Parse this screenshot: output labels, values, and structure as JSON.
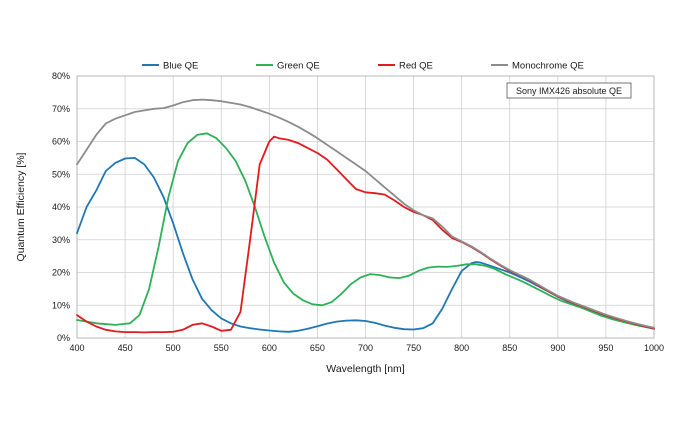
{
  "chart_data": {
    "type": "line",
    "title": "",
    "xlabel": "Wavelength [nm]",
    "ylabel": "Quantum Efficiency [%]",
    "xlim": [
      400,
      1000
    ],
    "ylim": [
      0,
      80
    ],
    "x_ticks": [
      400,
      450,
      500,
      550,
      600,
      650,
      700,
      750,
      800,
      850,
      900,
      950,
      1000
    ],
    "x_tick_labels": [
      "400",
      "450",
      "500",
      "550",
      "600",
      "650",
      "700",
      "750",
      "800",
      "850",
      "900",
      "950",
      "1000"
    ],
    "y_ticks": [
      0,
      10,
      20,
      30,
      40,
      50,
      60,
      70,
      80
    ],
    "y_tick_labels": [
      "0%",
      "10%",
      "20%",
      "30%",
      "40%",
      "50%",
      "60%",
      "70%",
      "80%"
    ],
    "grid": true,
    "legend_position": "top",
    "annotation": "Sony IMX426 absolute QE",
    "series": [
      {
        "name": "Blue QE",
        "color": "#1f77b4",
        "points": [
          [
            400,
            32
          ],
          [
            410,
            40
          ],
          [
            420,
            45
          ],
          [
            430,
            51
          ],
          [
            440,
            53.5
          ],
          [
            450,
            54.8
          ],
          [
            460,
            55
          ],
          [
            470,
            53
          ],
          [
            480,
            49
          ],
          [
            490,
            43
          ],
          [
            500,
            35
          ],
          [
            510,
            26
          ],
          [
            520,
            18
          ],
          [
            530,
            12
          ],
          [
            540,
            8.5
          ],
          [
            550,
            6
          ],
          [
            560,
            4.5
          ],
          [
            570,
            3.5
          ],
          [
            580,
            3
          ],
          [
            590,
            2.6
          ],
          [
            600,
            2.3
          ],
          [
            610,
            2
          ],
          [
            620,
            1.9
          ],
          [
            630,
            2.2
          ],
          [
            640,
            2.8
          ],
          [
            650,
            3.6
          ],
          [
            660,
            4.4
          ],
          [
            670,
            5
          ],
          [
            680,
            5.3
          ],
          [
            690,
            5.4
          ],
          [
            700,
            5.2
          ],
          [
            710,
            4.6
          ],
          [
            720,
            3.8
          ],
          [
            730,
            3.1
          ],
          [
            740,
            2.7
          ],
          [
            750,
            2.6
          ],
          [
            760,
            3
          ],
          [
            770,
            4.5
          ],
          [
            780,
            9
          ],
          [
            790,
            15
          ],
          [
            800,
            20.5
          ],
          [
            810,
            22.8
          ],
          [
            815,
            23.2
          ],
          [
            820,
            23
          ],
          [
            830,
            22
          ],
          [
            840,
            21
          ],
          [
            850,
            20
          ],
          [
            860,
            18.7
          ],
          [
            870,
            17.3
          ],
          [
            880,
            15.8
          ],
          [
            890,
            14.2
          ],
          [
            900,
            12.6
          ],
          [
            910,
            11.2
          ],
          [
            920,
            10
          ],
          [
            930,
            9
          ],
          [
            940,
            7.8
          ],
          [
            950,
            6.7
          ],
          [
            960,
            5.8
          ],
          [
            970,
            5
          ],
          [
            980,
            4.2
          ],
          [
            990,
            3.5
          ],
          [
            1000,
            2.8
          ]
        ]
      },
      {
        "name": "Green QE",
        "color": "#2db057",
        "points": [
          [
            400,
            5.5
          ],
          [
            420,
            4.5
          ],
          [
            440,
            4
          ],
          [
            455,
            4.5
          ],
          [
            465,
            7
          ],
          [
            475,
            15
          ],
          [
            485,
            28
          ],
          [
            495,
            43
          ],
          [
            505,
            54
          ],
          [
            515,
            59.5
          ],
          [
            525,
            62
          ],
          [
            535,
            62.5
          ],
          [
            545,
            61
          ],
          [
            555,
            58
          ],
          [
            565,
            54
          ],
          [
            575,
            48
          ],
          [
            585,
            40
          ],
          [
            595,
            31
          ],
          [
            605,
            23
          ],
          [
            615,
            17
          ],
          [
            625,
            13.5
          ],
          [
            635,
            11.5
          ],
          [
            645,
            10.3
          ],
          [
            655,
            10
          ],
          [
            665,
            11
          ],
          [
            675,
            13.5
          ],
          [
            685,
            16.5
          ],
          [
            695,
            18.5
          ],
          [
            705,
            19.5
          ],
          [
            715,
            19.2
          ],
          [
            725,
            18.5
          ],
          [
            735,
            18.3
          ],
          [
            745,
            19
          ],
          [
            755,
            20.5
          ],
          [
            765,
            21.5
          ],
          [
            775,
            21.8
          ],
          [
            785,
            21.7
          ],
          [
            795,
            22
          ],
          [
            805,
            22.5
          ],
          [
            815,
            22.5
          ],
          [
            825,
            22
          ],
          [
            835,
            21
          ],
          [
            845,
            19.5
          ],
          [
            855,
            18.3
          ],
          [
            865,
            17
          ],
          [
            875,
            15.5
          ],
          [
            885,
            14
          ],
          [
            895,
            12.5
          ],
          [
            905,
            11.2
          ],
          [
            915,
            10.2
          ],
          [
            925,
            9.2
          ],
          [
            935,
            8
          ],
          [
            945,
            6.8
          ],
          [
            955,
            5.9
          ],
          [
            965,
            5.1
          ],
          [
            975,
            4.4
          ],
          [
            985,
            3.7
          ],
          [
            1000,
            2.8
          ]
        ]
      },
      {
        "name": "Red QE",
        "color": "#e31a1c",
        "points": [
          [
            400,
            7
          ],
          [
            410,
            5
          ],
          [
            420,
            3.5
          ],
          [
            430,
            2.5
          ],
          [
            440,
            2
          ],
          [
            450,
            1.8
          ],
          [
            460,
            1.8
          ],
          [
            470,
            1.7
          ],
          [
            480,
            1.8
          ],
          [
            490,
            1.8
          ],
          [
            500,
            1.9
          ],
          [
            510,
            2.5
          ],
          [
            520,
            4
          ],
          [
            530,
            4.5
          ],
          [
            540,
            3.5
          ],
          [
            550,
            2.2
          ],
          [
            560,
            2.5
          ],
          [
            570,
            8
          ],
          [
            580,
            30
          ],
          [
            590,
            53
          ],
          [
            600,
            60
          ],
          [
            605,
            61.5
          ],
          [
            610,
            61
          ],
          [
            620,
            60.5
          ],
          [
            630,
            59.5
          ],
          [
            640,
            58
          ],
          [
            650,
            56.5
          ],
          [
            660,
            54.5
          ],
          [
            670,
            51.5
          ],
          [
            680,
            48.5
          ],
          [
            690,
            45.5
          ],
          [
            700,
            44.5
          ],
          [
            710,
            44.2
          ],
          [
            720,
            43.8
          ],
          [
            730,
            42
          ],
          [
            740,
            40
          ],
          [
            750,
            38.5
          ],
          [
            760,
            37.5
          ],
          [
            770,
            36
          ],
          [
            780,
            33
          ],
          [
            790,
            30.5
          ],
          [
            800,
            29.3
          ],
          [
            810,
            27.8
          ],
          [
            820,
            26
          ],
          [
            830,
            24
          ],
          [
            840,
            22.2
          ],
          [
            850,
            20.5
          ],
          [
            860,
            19.2
          ],
          [
            870,
            17.8
          ],
          [
            880,
            16
          ],
          [
            890,
            14.3
          ],
          [
            900,
            12.7
          ],
          [
            910,
            11.4
          ],
          [
            920,
            10.2
          ],
          [
            930,
            9.1
          ],
          [
            940,
            8
          ],
          [
            950,
            6.9
          ],
          [
            960,
            6
          ],
          [
            970,
            5.1
          ],
          [
            980,
            4.3
          ],
          [
            990,
            3.6
          ],
          [
            1000,
            2.9
          ]
        ]
      },
      {
        "name": "Monochrome QE",
        "color": "#8c8c8c",
        "points": [
          [
            400,
            53
          ],
          [
            410,
            57.5
          ],
          [
            420,
            62
          ],
          [
            430,
            65.5
          ],
          [
            440,
            67
          ],
          [
            450,
            68
          ],
          [
            460,
            69
          ],
          [
            470,
            69.5
          ],
          [
            480,
            70
          ],
          [
            490,
            70.2
          ],
          [
            500,
            71
          ],
          [
            510,
            72
          ],
          [
            520,
            72.6
          ],
          [
            530,
            72.8
          ],
          [
            540,
            72.6
          ],
          [
            550,
            72.3
          ],
          [
            560,
            71.8
          ],
          [
            570,
            71.3
          ],
          [
            580,
            70.5
          ],
          [
            590,
            69.5
          ],
          [
            600,
            68.5
          ],
          [
            610,
            67.3
          ],
          [
            620,
            66
          ],
          [
            630,
            64.5
          ],
          [
            640,
            62.8
          ],
          [
            650,
            61
          ],
          [
            660,
            59
          ],
          [
            670,
            57
          ],
          [
            680,
            55
          ],
          [
            690,
            53
          ],
          [
            700,
            51
          ],
          [
            710,
            48.5
          ],
          [
            720,
            46
          ],
          [
            730,
            43.5
          ],
          [
            740,
            41
          ],
          [
            750,
            39
          ],
          [
            760,
            37.5
          ],
          [
            770,
            36.5
          ],
          [
            780,
            34
          ],
          [
            790,
            31
          ],
          [
            800,
            29.5
          ],
          [
            810,
            28
          ],
          [
            820,
            26.2
          ],
          [
            830,
            24.2
          ],
          [
            840,
            22.4
          ],
          [
            850,
            20.7
          ],
          [
            860,
            19.3
          ],
          [
            870,
            17.9
          ],
          [
            880,
            16.2
          ],
          [
            890,
            14.5
          ],
          [
            900,
            12.9
          ],
          [
            910,
            11.6
          ],
          [
            920,
            10.4
          ],
          [
            930,
            9.3
          ],
          [
            940,
            8.2
          ],
          [
            950,
            7.1
          ],
          [
            960,
            6.2
          ],
          [
            970,
            5.3
          ],
          [
            980,
            4.5
          ],
          [
            990,
            3.8
          ],
          [
            1000,
            3.1
          ]
        ]
      }
    ]
  }
}
